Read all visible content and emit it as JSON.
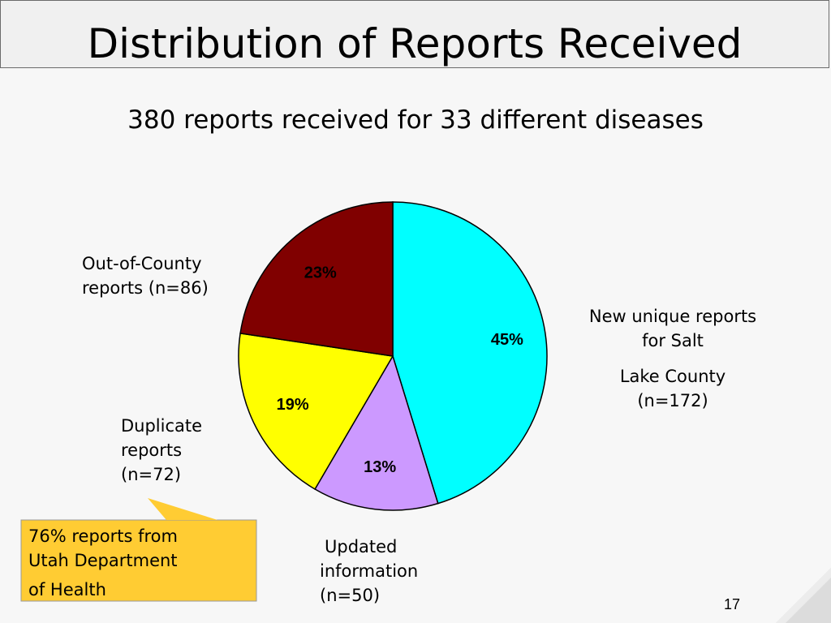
{
  "slide": {
    "title": "Distribution of Reports Received",
    "subtitle": "380 reports received for 33 different diseases",
    "page_number": "17"
  },
  "chart_data": {
    "type": "pie",
    "categories": [
      "New unique reports for Salt Lake County (n=172)",
      "Updated information (n=50)",
      "Duplicate reports (n=72)",
      "Out-of-County reports (n=86)"
    ],
    "values": [
      172,
      50,
      72,
      86
    ],
    "percent_labels": [
      "45%",
      "13%",
      "19%",
      "23%"
    ],
    "colors": [
      "#00ffff",
      "#cc99ff",
      "#ffff00",
      "#800000"
    ],
    "labels": [
      {
        "lines": [
          "New unique reports",
          "for Salt",
          "Lake County",
          "(n=172)"
        ]
      },
      {
        "lines": [
          "Updated",
          "information",
          "(n=50)"
        ]
      },
      {
        "lines": [
          "Duplicate",
          "reports",
          "(n=72)"
        ]
      },
      {
        "lines": [
          "Out-of-County",
          "reports (n=86)"
        ]
      }
    ]
  },
  "callout": {
    "lines": [
      "76% reports from",
      "Utah Department",
      "of Health"
    ],
    "color": "#ffcc33"
  }
}
